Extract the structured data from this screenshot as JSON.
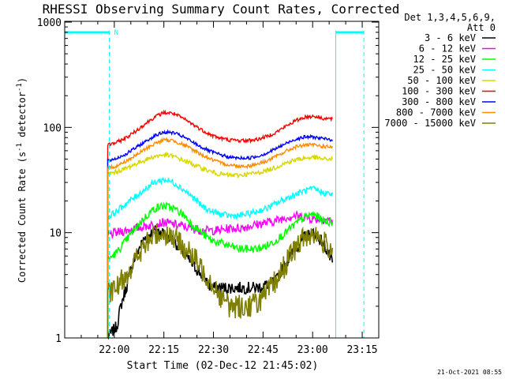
{
  "chart_data": {
    "type": "line",
    "title": "RHESSI Observing Summary Count Rates, Corrected",
    "xlabel": "Start Time (02-Dec-12 21:45:02)",
    "ylabel_parts": [
      "Corrected Count Rate (s",
      "-1",
      " detector",
      "-1",
      ")"
    ],
    "yscale": "log",
    "ylim": [
      1,
      1000
    ],
    "xlim_minutes_after_start": [
      0,
      95
    ],
    "x_ticks": [
      "22:00",
      "22:15",
      "22:30",
      "22:45",
      "23:00",
      "23:15"
    ],
    "y_ticks": [
      "1",
      "10",
      "100",
      "1000"
    ],
    "footer_timestamp": "21-Oct-2021 08:55",
    "legend": {
      "header": [
        "Det 1,3,4,5,6,9,",
        "Att 0"
      ],
      "placement": "top-right outside"
    },
    "data_start_minute": 13,
    "data_end_minute": 81,
    "series": [
      {
        "name": "3 - 6 keV",
        "color": "#000000",
        "values": [
          1,
          1.3,
          3,
          6,
          9,
          10.5,
          10,
          8.5,
          6.5,
          5,
          4,
          3,
          3,
          3,
          3,
          3,
          3,
          3.2,
          3.5,
          5,
          7,
          9,
          10,
          8,
          5
        ]
      },
      {
        "name": "6 - 12 keV",
        "color": "#ff00ff",
        "values": [
          9.5,
          10,
          10.5,
          11,
          11.5,
          12,
          12.5,
          12,
          11.5,
          11,
          10.5,
          10.5,
          10.5,
          11,
          11,
          11.5,
          12,
          12.5,
          13,
          14,
          14.5,
          14,
          13.5,
          13.5,
          13
        ]
      },
      {
        "name": "12 - 25 keV",
        "color": "#00ff00",
        "values": [
          5.5,
          6.5,
          8.5,
          11,
          14,
          17,
          18,
          17,
          15,
          12,
          10,
          8.5,
          8,
          7.5,
          7,
          7,
          7,
          7.5,
          8.5,
          10,
          12,
          14,
          15,
          13,
          12.5
        ]
      },
      {
        "name": "25 - 50 keV",
        "color": "#00ffff",
        "values": [
          14,
          16,
          19,
          22,
          26,
          30,
          32,
          30,
          26,
          22,
          18,
          16,
          15,
          14.5,
          14.5,
          15,
          16,
          17,
          19,
          21,
          23,
          25,
          26,
          24,
          23
        ]
      },
      {
        "name": "50 - 100 keV",
        "color": "#d8d800",
        "values": [
          36,
          38,
          41,
          45,
          49,
          53,
          55,
          53,
          49,
          45,
          41,
          38,
          36,
          35,
          35,
          36,
          37,
          39,
          42,
          46,
          49,
          51,
          52,
          50,
          50
        ]
      },
      {
        "name": "100 - 300 keV",
        "color": "#ff0000",
        "values": [
          68,
          72,
          80,
          92,
          108,
          125,
          138,
          136,
          122,
          108,
          95,
          85,
          79,
          76,
          75,
          75,
          77,
          82,
          90,
          102,
          115,
          125,
          128,
          122,
          120
        ]
      },
      {
        "name": "300 - 800 keV",
        "color": "#0000ff",
        "values": [
          48,
          51,
          56,
          64,
          73,
          83,
          90,
          89,
          82,
          73,
          65,
          59,
          55,
          52,
          51,
          51,
          53,
          57,
          63,
          70,
          77,
          81,
          81,
          78,
          76
        ]
      },
      {
        "name": "800 - 7000 keV",
        "color": "#ff8c00",
        "values": [
          41,
          43,
          48,
          54,
          62,
          70,
          76,
          75,
          69,
          62,
          55,
          50,
          46,
          44,
          43,
          43,
          45,
          48,
          53,
          59,
          65,
          68,
          68,
          66,
          65
        ]
      },
      {
        "name": "7000 - 15000 keV",
        "color": "#808000",
        "values": [
          2.5,
          3,
          4,
          5.5,
          7.5,
          9.5,
          10,
          9,
          7.5,
          6,
          4.5,
          3.5,
          2.5,
          2,
          2,
          2,
          2.2,
          2.6,
          3.5,
          5,
          7,
          9,
          10,
          8,
          7
        ]
      }
    ],
    "annotations": {
      "attenuator_bars": [
        {
          "from_minute": 0,
          "to_minute": 13.5
        },
        {
          "from_minute": 82,
          "to_minute": 90.5
        }
      ],
      "bar_label": "N",
      "dashed_markers_minutes": [
        13.5,
        90.5
      ],
      "solid_markers_minutes": [
        0,
        82
      ]
    }
  }
}
